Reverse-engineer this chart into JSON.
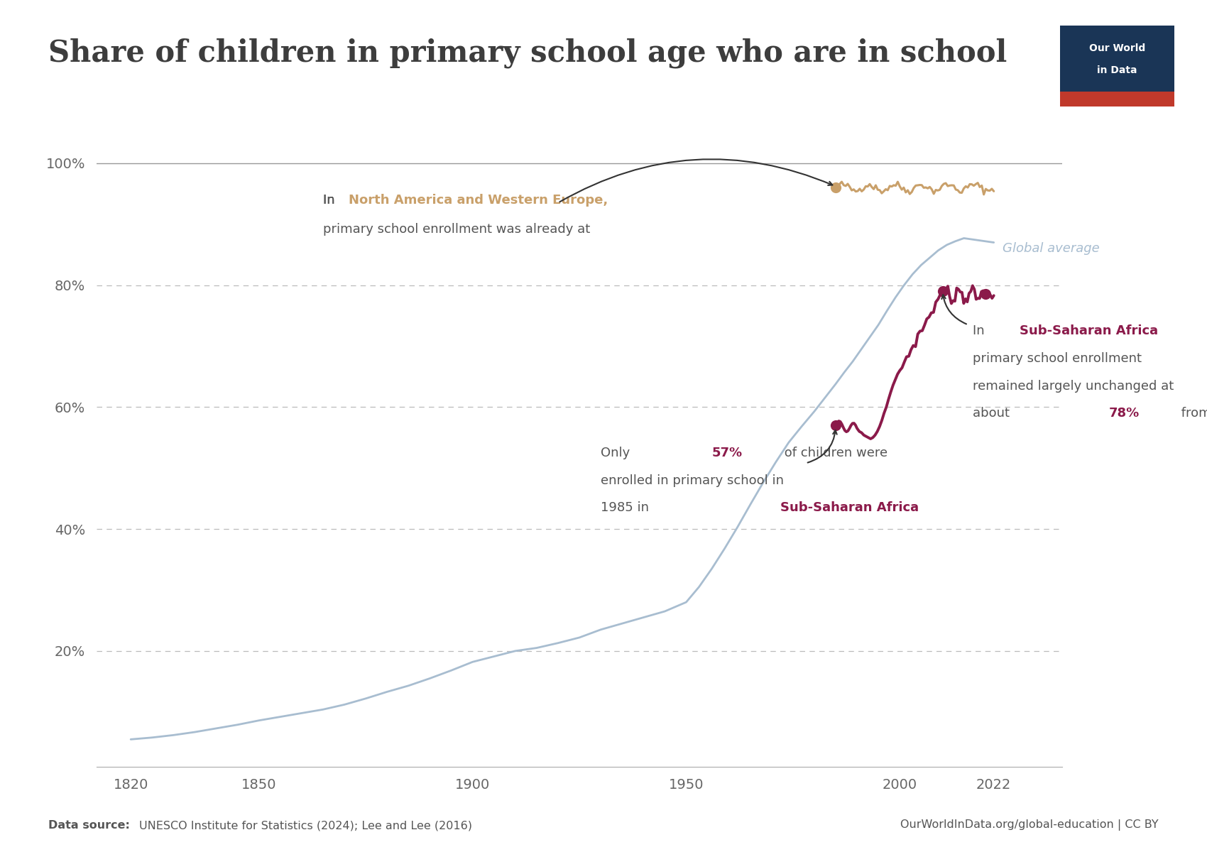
{
  "title": "Share of children in primary school age who are in school",
  "title_color": "#3d3d3d",
  "background_color": "#ffffff",
  "footer_left": "Data source: UNESCO Institute for Statistics (2024); Lee and Lee (2016)",
  "footer_right": "OurWorldInData.org/global-education | CC BY",
  "yticks": [
    0.2,
    0.4,
    0.6,
    0.8,
    1.0
  ],
  "ytick_labels": [
    "20%",
    "40%",
    "60%",
    "80%",
    "100%"
  ],
  "xticks": [
    1820,
    1850,
    1900,
    1950,
    2000,
    2022
  ],
  "xlim": [
    1812,
    2038
  ],
  "ylim": [
    0.01,
    1.1
  ],
  "global_color": "#a8bdd0",
  "nafwe_color": "#c9a06a",
  "ssa_color": "#8b1a4a",
  "global_label": "Global average",
  "text_color": "#555555",
  "arrow_color": "#333333",
  "logo_bg": "#1a3556",
  "logo_red": "#c0392b"
}
